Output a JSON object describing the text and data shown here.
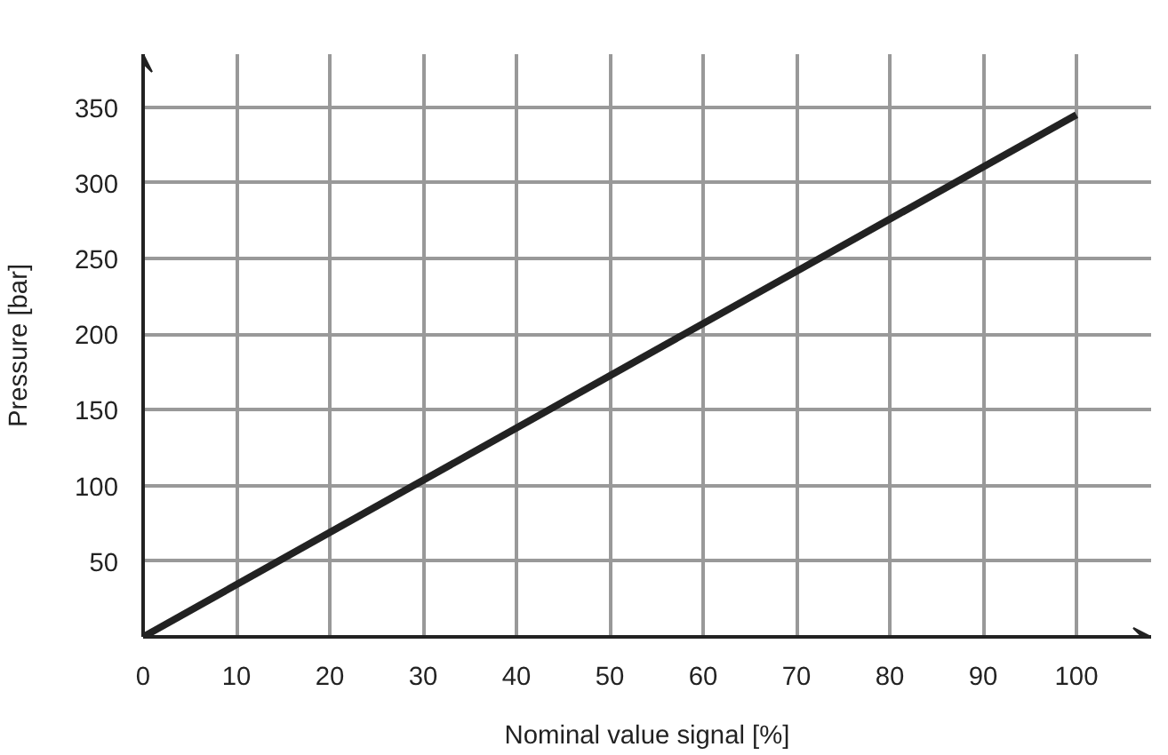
{
  "chart_data": {
    "type": "line",
    "xlabel": "Nominal value signal [%]",
    "ylabel": "Pressure [bar]",
    "x": [
      0,
      100
    ],
    "series": [
      {
        "color": "#222222",
        "values": [
          0,
          345
        ]
      }
    ],
    "xlim": [
      0,
      108
    ],
    "ylim": [
      0,
      385
    ],
    "xticks": [
      0,
      10,
      20,
      30,
      40,
      50,
      60,
      70,
      80,
      90,
      100
    ],
    "yticks": [
      50,
      100,
      150,
      200,
      250,
      300,
      350
    ],
    "grid": true,
    "marker": "none",
    "line_style": "solid"
  }
}
